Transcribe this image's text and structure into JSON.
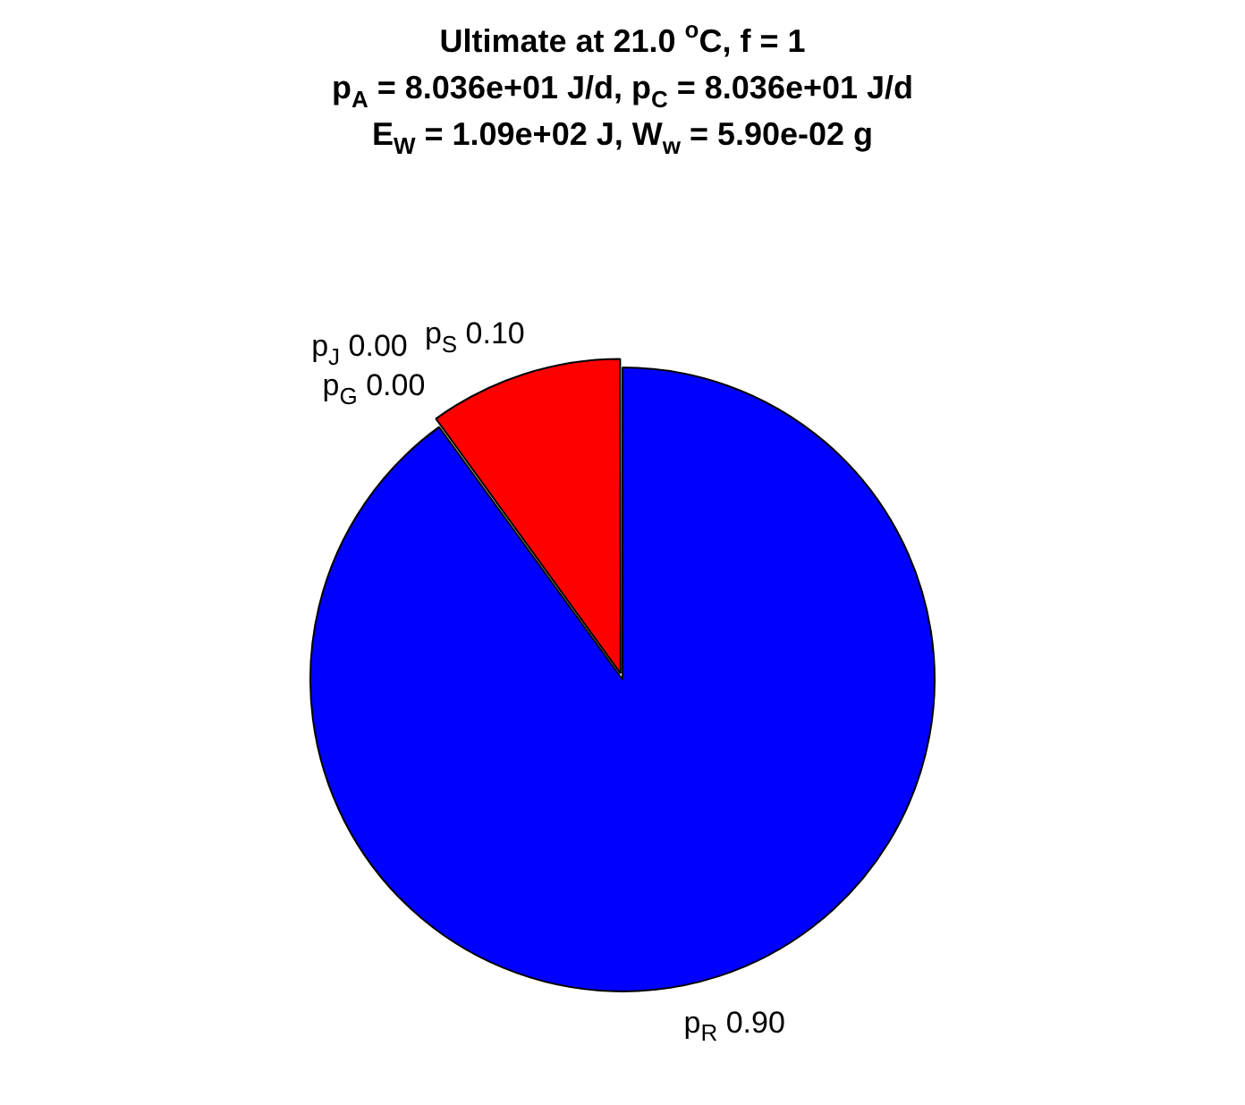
{
  "chart_data": {
    "type": "pie",
    "title": "Ultimate at 21.0 $^{o}$C, f = 1\np$_{A}$ = 8.036e+01 J/d, p$_{C}$ = 8.036e+01 J/d\nE$_{W}$ = 1.09e+02 J, W$_{w}$ = 5.90e-02 g",
    "categories": [
      "p$_{R}$",
      "p$_{G}$",
      "p$_{J}$",
      "p$_{S}$"
    ],
    "values": [
      0.9,
      0.0,
      0.0,
      0.1
    ],
    "value_labels": [
      "0.90",
      "0.00",
      "0.00",
      "0.10"
    ],
    "colors": [
      "#0000ff",
      "#00ff00",
      "#ffff00",
      "#ff0000"
    ],
    "legend": false
  }
}
